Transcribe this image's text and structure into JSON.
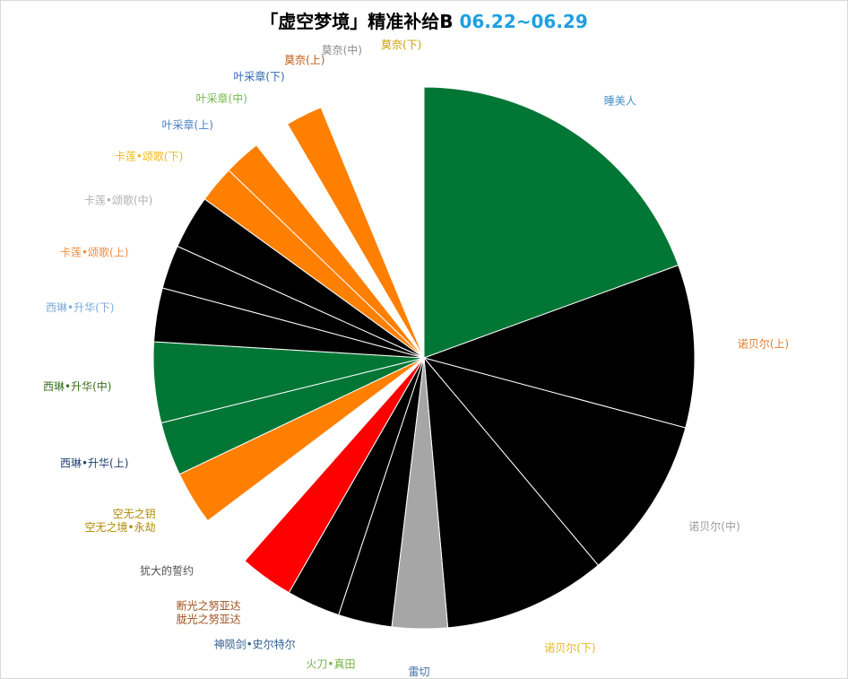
{
  "chart_data": {
    "type": "pie",
    "title": "「虚空梦境」精准补给B",
    "title_date": "06.22~06.29",
    "legend": "none",
    "slices": [
      {
        "label": "睡美人",
        "value": 19.4,
        "color": "#027634",
        "label_color": "#4a90c8"
      },
      {
        "label": "诺贝尔(上)",
        "value": 9.7,
        "color": "#000000",
        "label_color": "#e07b2c"
      },
      {
        "label": "诺贝尔(中)",
        "value": 9.7,
        "color": "#000000",
        "label_color": "#9a9a9a"
      },
      {
        "label": "诺贝尔(下)",
        "value": 9.7,
        "color": "#000000",
        "label_color": "#e8b818"
      },
      {
        "label": "雷切",
        "value": 3.3,
        "color": "#a6a6a6",
        "label_color": "#3f6ea5"
      },
      {
        "label": "火刀•真田",
        "value": 3.2,
        "color": "#000000",
        "label_color": "#78b040"
      },
      {
        "label": "神陨剑•史尔特尔",
        "value": 3.2,
        "color": "#000000",
        "label_color": "#2f5f8f"
      },
      {
        "label": "断光之努亚达\n胧光之努亚达",
        "value": 3.2,
        "color": "#ff0000",
        "label_color": "#a0501a"
      },
      {
        "label": "犹大的誓约",
        "value": 3.2,
        "color": "#ffffff",
        "label_color": "#505050"
      },
      {
        "label": "空无之钥\n空无之境•永劫",
        "value": 3.2,
        "color": "#ff7f00",
        "label_color": "#b08a00"
      },
      {
        "label": "西琳•升华(上)",
        "value": 3.2,
        "color": "#027634",
        "label_color": "#1f3f6f"
      },
      {
        "label": "西琳•升华(中)",
        "value": 4.8,
        "color": "#027634",
        "label_color": "#3a6e1e"
      },
      {
        "label": "西琳•升华(下)",
        "value": 3.2,
        "color": "#000000",
        "label_color": "#7aaadc"
      },
      {
        "label": "卡莲•颂歌(上)",
        "value": 2.6,
        "color": "#000000",
        "label_color": "#f08a3c"
      },
      {
        "label": "卡莲•颂歌(中)",
        "value": 3.2,
        "color": "#000000",
        "label_color": "#b0b0b0"
      },
      {
        "label": "卡莲•颂歌(下)",
        "value": 2.2,
        "color": "#ff7f00",
        "label_color": "#f0b81c"
      },
      {
        "label": "叶采章(上)",
        "value": 2.2,
        "color": "#ff7f00",
        "label_color": "#4a7ec0"
      },
      {
        "label": "叶采章(中)",
        "value": 2.2,
        "color": "#ffffff",
        "label_color": "#78b850"
      },
      {
        "label": "叶采章(下)",
        "value": 2.2,
        "color": "#ff7f00",
        "label_color": "#2f66b0"
      },
      {
        "label": "莫奈(上)",
        "value": 2.2,
        "color": "#ffffff",
        "label_color": "#c05a10"
      },
      {
        "label": "莫奈(中)",
        "value": 1.7,
        "color": "#ffffff",
        "label_color": "#8a8a8a"
      },
      {
        "label": "莫奈(下)",
        "value": 2.3,
        "color": "#ffffff",
        "label_color": "#c8a000"
      }
    ]
  }
}
